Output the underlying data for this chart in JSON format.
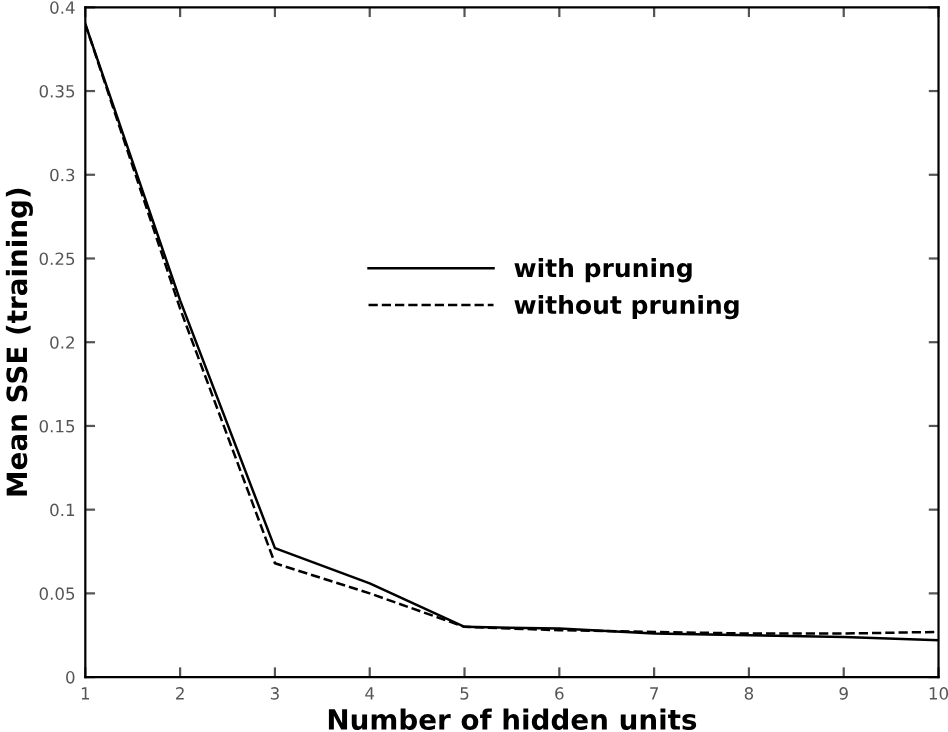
{
  "chart_data": {
    "type": "line",
    "xlabel": "Number of hidden units",
    "ylabel": "Mean SSE (training)",
    "x": [
      1,
      2,
      3,
      4,
      5,
      6,
      7,
      8,
      9,
      10
    ],
    "series": [
      {
        "name": "with pruning",
        "color": "#000000",
        "line_style": "solid",
        "values": [
          0.39,
          0.225,
          0.077,
          0.056,
          0.03,
          0.029,
          0.026,
          0.025,
          0.024,
          0.022
        ]
      },
      {
        "name": "without pruning",
        "color": "#000000",
        "line_style": "dashed",
        "values": [
          0.39,
          0.22,
          0.068,
          0.05,
          0.03,
          0.028,
          0.027,
          0.026,
          0.026,
          0.027
        ]
      }
    ],
    "xlim": [
      1,
      10
    ],
    "ylim": [
      0,
      0.4
    ],
    "xticks": [
      1,
      2,
      3,
      4,
      5,
      6,
      7,
      8,
      9,
      10
    ],
    "yticks": [
      0,
      0.05,
      0.1,
      0.15,
      0.2,
      0.25,
      0.3,
      0.35,
      0.4
    ],
    "grid": false,
    "legend": "center",
    "marker": "none"
  }
}
